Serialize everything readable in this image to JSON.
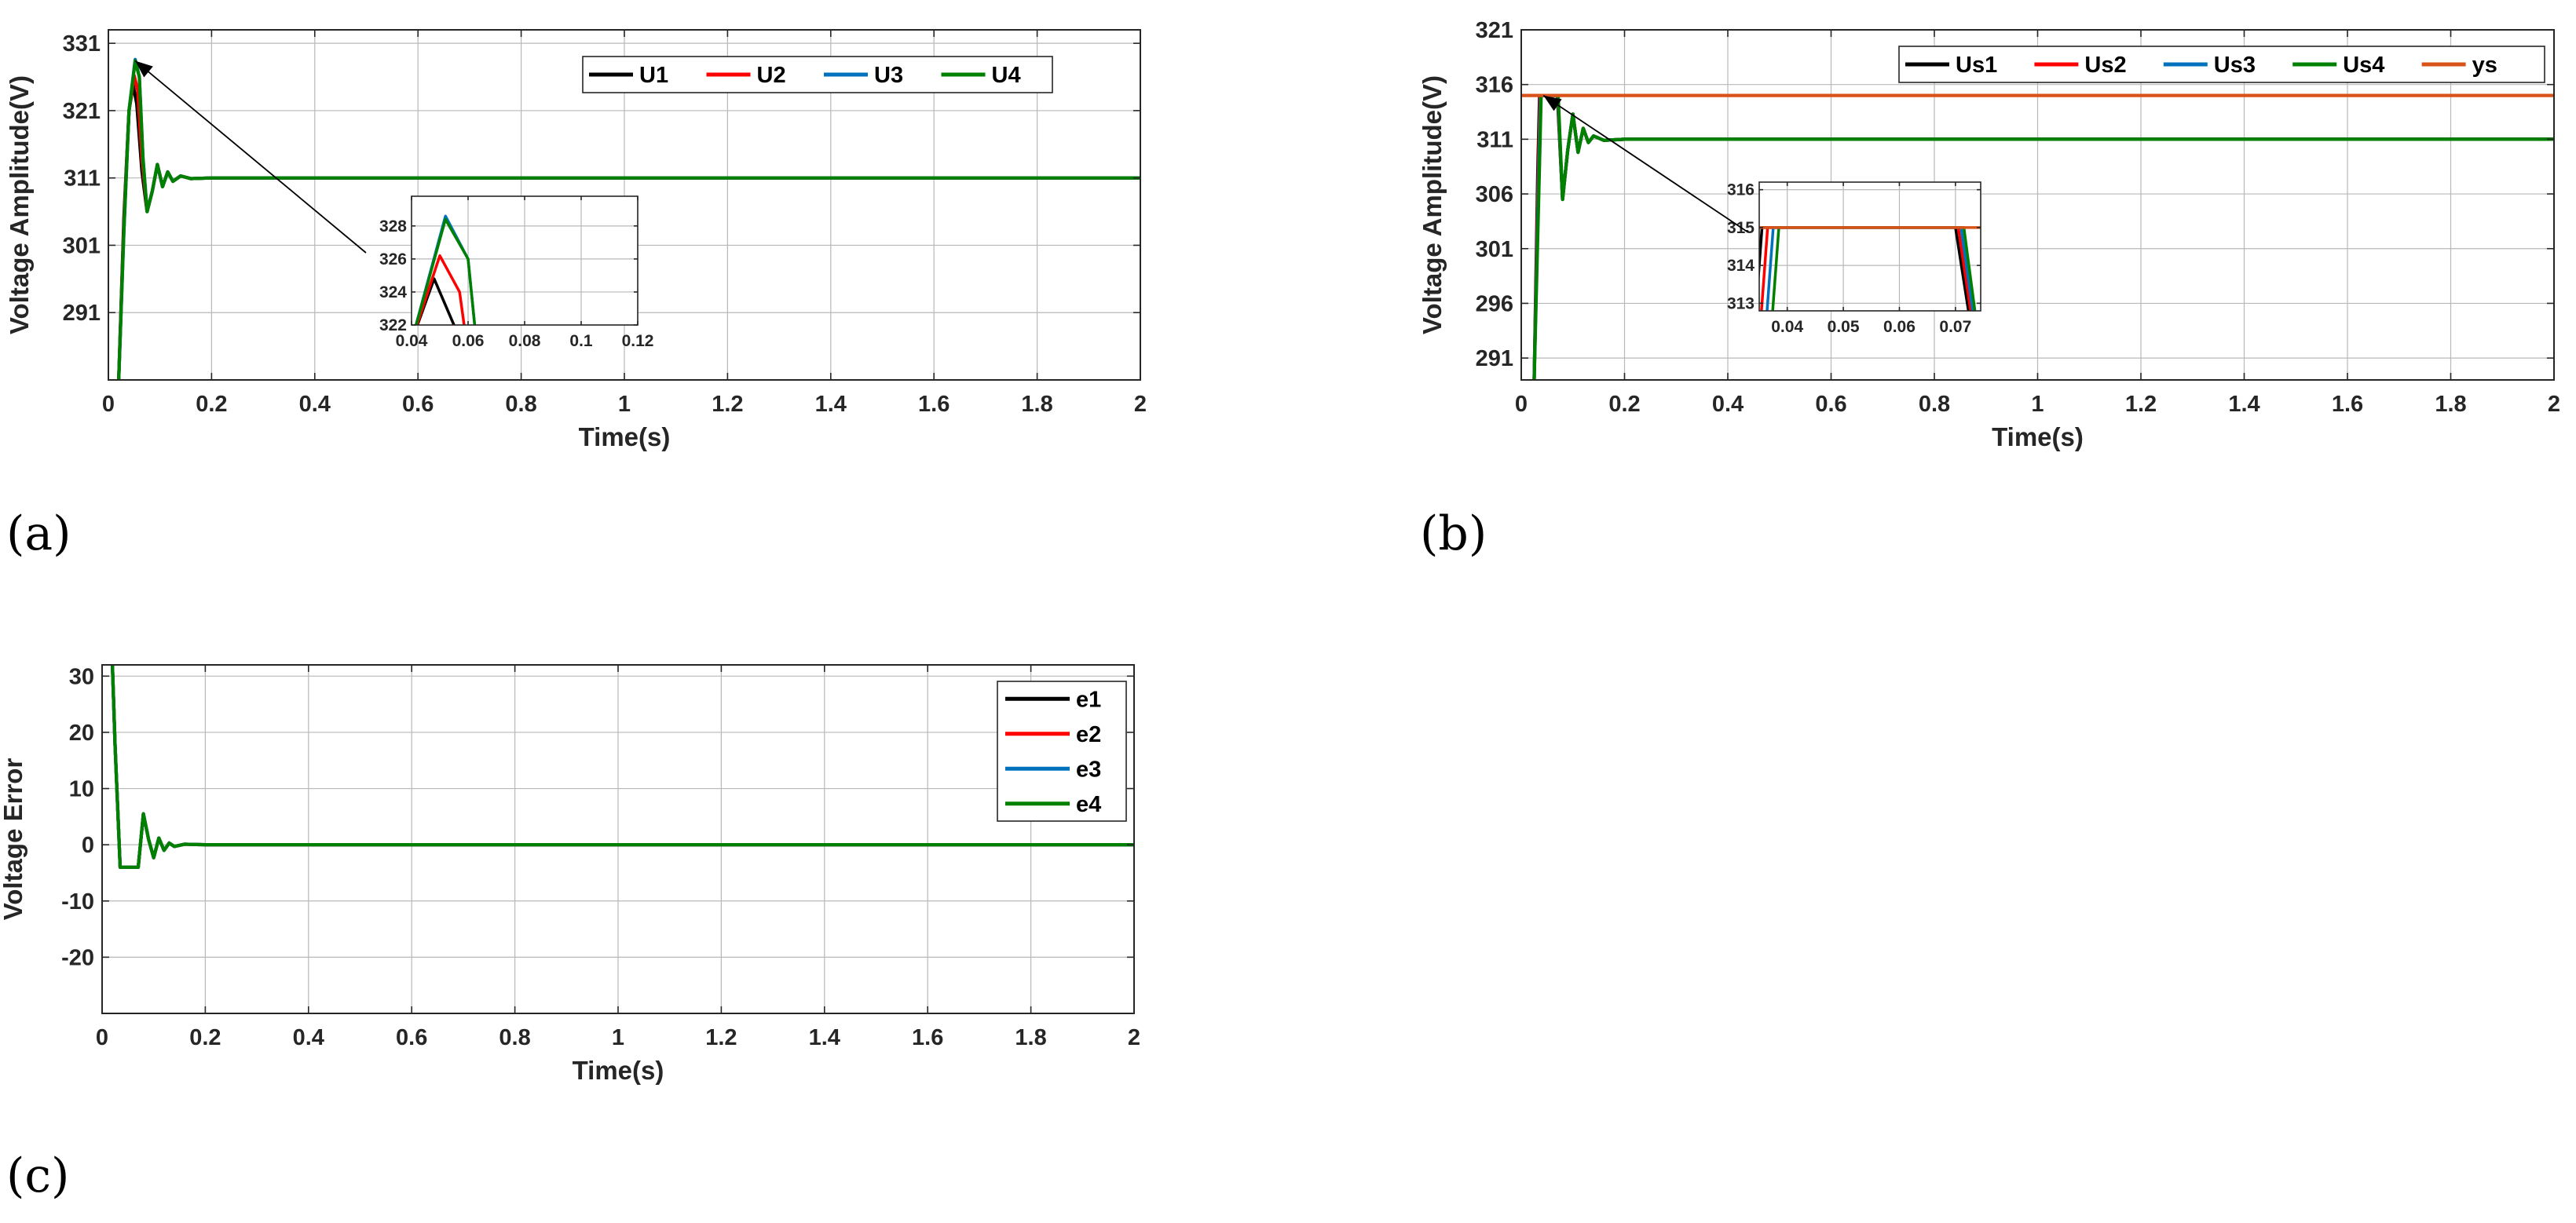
{
  "colors": {
    "black": "#000000",
    "red": "#ff0000",
    "blue": "#0072bd",
    "green": "#008000",
    "orange": "#d95319",
    "grid": "#b8b8b8",
    "axis": "#262626"
  },
  "panel_labels": [
    "(a)",
    "(b)",
    "(c)"
  ],
  "chart_data": [
    {
      "id": "a",
      "type": "line",
      "xlabel": "Time(s)",
      "ylabel": "Voltage Amplitude(V)",
      "xlim": [
        0,
        2
      ],
      "ylim": [
        281,
        333
      ],
      "xticks": [
        0,
        0.2,
        0.4,
        0.6,
        0.8,
        1,
        1.2,
        1.4,
        1.6,
        1.8,
        2
      ],
      "xtick_labels": [
        "0",
        "0.2",
        "0.4",
        "0.6",
        "0.8",
        "1",
        "1.2",
        "1.4",
        "1.6",
        "1.8",
        "2"
      ],
      "yticks": [
        291,
        301,
        311,
        321,
        331
      ],
      "ytick_labels": [
        "291",
        "301",
        "311",
        "321",
        "331"
      ],
      "grid": true,
      "legend": "top-right",
      "legend_orientation": "horizontal",
      "series": [
        {
          "name": "U1",
          "color": "#000000",
          "x": [
            0.02,
            0.03,
            0.04,
            0.048,
            0.055,
            0.065,
            0.075,
            0.085,
            0.095,
            0.105,
            0.115,
            0.125,
            0.14,
            0.16,
            0.2,
            2.0
          ],
          "y": [
            281,
            305,
            321,
            324.8,
            322,
            312,
            306,
            309,
            313,
            309.7,
            311.9,
            310.5,
            311.3,
            310.9,
            311,
            311
          ]
        },
        {
          "name": "U2",
          "color": "#ff0000",
          "x": [
            0.02,
            0.03,
            0.04,
            0.05,
            0.057,
            0.065,
            0.075,
            0.085,
            0.095,
            0.105,
            0.115,
            0.125,
            0.14,
            0.16,
            0.2,
            2.0
          ],
          "y": [
            281,
            304,
            321,
            326.2,
            324,
            314,
            306,
            309,
            313,
            309.7,
            311.9,
            310.5,
            311.3,
            310.9,
            311,
            311
          ]
        },
        {
          "name": "U3",
          "color": "#0072bd",
          "x": [
            0.02,
            0.03,
            0.04,
            0.052,
            0.06,
            0.067,
            0.075,
            0.085,
            0.095,
            0.105,
            0.115,
            0.125,
            0.14,
            0.16,
            0.2,
            2.0
          ],
          "y": [
            281,
            303,
            321,
            328.6,
            326,
            314,
            306,
            309,
            313,
            309.7,
            311.9,
            310.5,
            311.3,
            310.9,
            311,
            311
          ]
        },
        {
          "name": "U4",
          "color": "#008000",
          "x": [
            0.02,
            0.03,
            0.04,
            0.052,
            0.06,
            0.067,
            0.075,
            0.085,
            0.095,
            0.105,
            0.115,
            0.125,
            0.14,
            0.16,
            0.2,
            2.0
          ],
          "y": [
            281,
            303,
            321,
            328.4,
            326,
            314,
            306,
            309,
            313,
            309.7,
            311.9,
            310.5,
            311.3,
            310.9,
            311,
            311
          ]
        }
      ],
      "inset": {
        "xlim": [
          0.04,
          0.12
        ],
        "ylim": [
          322,
          329.8
        ],
        "xticks": [
          0.04,
          0.06,
          0.08,
          0.1,
          0.12
        ],
        "xtick_labels": [
          "0.04",
          "0.06",
          "0.08",
          "0.1",
          "0.12"
        ],
        "yticks": [
          322,
          324,
          326,
          328
        ],
        "ytick_labels": [
          "322",
          "324",
          "326",
          "328"
        ]
      }
    },
    {
      "id": "b",
      "type": "line",
      "xlabel": "Time(s)",
      "ylabel": "Voltage Amplitude(V)",
      "xlim": [
        0,
        2
      ],
      "ylim": [
        289,
        321
      ],
      "xticks": [
        0,
        0.2,
        0.4,
        0.6,
        0.8,
        1,
        1.2,
        1.4,
        1.6,
        1.8,
        2
      ],
      "xtick_labels": [
        "0",
        "0.2",
        "0.4",
        "0.6",
        "0.8",
        "1",
        "1.2",
        "1.4",
        "1.6",
        "1.8",
        "2"
      ],
      "yticks": [
        291,
        296,
        301,
        306,
        311,
        316,
        321
      ],
      "ytick_labels": [
        "291",
        "296",
        "301",
        "306",
        "311",
        "316",
        "321"
      ],
      "grid": true,
      "legend": "top-right",
      "legend_orientation": "horizontal",
      "series": [
        {
          "name": "Us1",
          "color": "#000000",
          "x": [
            0.025,
            0.032,
            0.0355,
            0.07,
            0.08,
            0.09,
            0.1,
            0.11,
            0.12,
            0.13,
            0.14,
            0.16,
            0.2,
            2.0
          ],
          "y": [
            289,
            308,
            315,
            315,
            305.5,
            310,
            313.3,
            309.8,
            312,
            310.7,
            311.3,
            310.9,
            311,
            311
          ]
        },
        {
          "name": "Us2",
          "color": "#ff0000",
          "x": [
            0.025,
            0.033,
            0.0365,
            0.0705,
            0.08,
            0.09,
            0.1,
            0.11,
            0.12,
            0.13,
            0.14,
            0.16,
            0.2,
            2.0
          ],
          "y": [
            289,
            308,
            315,
            315,
            305.5,
            310,
            313.3,
            309.8,
            312,
            310.7,
            311.3,
            310.9,
            311,
            311
          ]
        },
        {
          "name": "Us3",
          "color": "#0072bd",
          "x": [
            0.025,
            0.034,
            0.0375,
            0.071,
            0.08,
            0.09,
            0.1,
            0.11,
            0.12,
            0.13,
            0.14,
            0.16,
            0.2,
            2.0
          ],
          "y": [
            289,
            308,
            315,
            315,
            305.5,
            310,
            313.3,
            309.8,
            312,
            310.7,
            311.3,
            310.9,
            311,
            311
          ]
        },
        {
          "name": "Us4",
          "color": "#008000",
          "x": [
            0.025,
            0.035,
            0.0385,
            0.0715,
            0.08,
            0.09,
            0.1,
            0.11,
            0.12,
            0.13,
            0.14,
            0.16,
            0.2,
            2.0
          ],
          "y": [
            289,
            308,
            315,
            315,
            305.5,
            310,
            313.3,
            309.8,
            312,
            310.7,
            311.3,
            310.9,
            311,
            311
          ]
        },
        {
          "name": "ys",
          "color": "#d95319",
          "x": [
            0,
            2
          ],
          "y": [
            315,
            315
          ]
        }
      ],
      "inset": {
        "xlim": [
          0.035,
          0.0745
        ],
        "ylim": [
          312.8,
          316.2
        ],
        "xticks": [
          0.04,
          0.05,
          0.06,
          0.07
        ],
        "xtick_labels": [
          "0.04",
          "0.05",
          "0.06",
          "0.07"
        ],
        "yticks": [
          313,
          314,
          315,
          316
        ],
        "ytick_labels": [
          "313",
          "314",
          "315",
          "316"
        ]
      }
    },
    {
      "id": "c",
      "type": "line",
      "xlabel": "Time(s)",
      "ylabel": "Voltage Error",
      "xlim": [
        0,
        2
      ],
      "ylim": [
        -30,
        32
      ],
      "xticks": [
        0,
        0.2,
        0.4,
        0.6,
        0.8,
        1,
        1.2,
        1.4,
        1.6,
        1.8,
        2
      ],
      "xtick_labels": [
        "0",
        "0.2",
        "0.4",
        "0.6",
        "0.8",
        "1",
        "1.2",
        "1.4",
        "1.6",
        "1.8",
        "2"
      ],
      "yticks": [
        -20,
        -10,
        0,
        10,
        20,
        30
      ],
      "ytick_labels": [
        "-20",
        "-10",
        "0",
        "10",
        "20",
        "30"
      ],
      "grid": true,
      "legend": "top-right",
      "legend_orientation": "vertical",
      "series": [
        {
          "name": "e1",
          "color": "#000000",
          "x": [
            0.02,
            0.025,
            0.035,
            0.07,
            0.08,
            0.09,
            0.1,
            0.11,
            0.12,
            0.13,
            0.14,
            0.16,
            0.2,
            2.0
          ],
          "y": [
            32,
            18,
            -4,
            -4,
            5.5,
            1,
            -2.3,
            1.2,
            -1,
            0.3,
            -0.3,
            0.1,
            0,
            0
          ]
        },
        {
          "name": "e2",
          "color": "#ff0000",
          "x": [
            0.02,
            0.025,
            0.035,
            0.07,
            0.08,
            0.09,
            0.1,
            0.11,
            0.12,
            0.13,
            0.14,
            0.16,
            0.2,
            2.0
          ],
          "y": [
            32,
            18,
            -4,
            -4,
            5.5,
            1,
            -2.3,
            1.2,
            -1,
            0.3,
            -0.3,
            0.1,
            0,
            0
          ]
        },
        {
          "name": "e3",
          "color": "#0072bd",
          "x": [
            0.02,
            0.025,
            0.035,
            0.07,
            0.08,
            0.09,
            0.1,
            0.11,
            0.12,
            0.13,
            0.14,
            0.16,
            0.2,
            2.0
          ],
          "y": [
            32,
            18,
            -4,
            -4,
            5.5,
            1,
            -2.3,
            1.2,
            -1,
            0.3,
            -0.3,
            0.1,
            0,
            0
          ]
        },
        {
          "name": "e4",
          "color": "#008000",
          "x": [
            0.02,
            0.025,
            0.035,
            0.07,
            0.08,
            0.09,
            0.1,
            0.11,
            0.12,
            0.13,
            0.14,
            0.16,
            0.2,
            2.0
          ],
          "y": [
            32,
            18,
            -4,
            -4,
            5.5,
            1,
            -2.3,
            1.2,
            -1,
            0.3,
            -0.3,
            0.1,
            0,
            0
          ]
        }
      ]
    }
  ]
}
